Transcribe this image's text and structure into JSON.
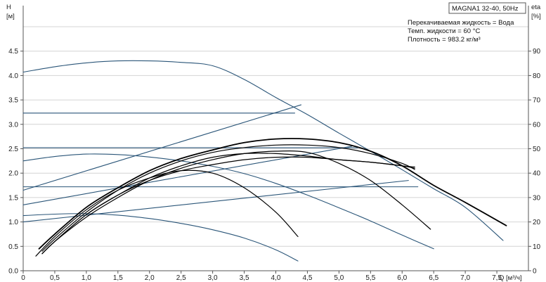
{
  "chart_data": {
    "type": "line",
    "title": "MAGNA1 32-40, 50Hz",
    "medium": [
      "Перекачиваемая жидкость = Вода",
      "Темп. жидкости = 60 °C",
      "Плотность = 983.2 кг/м³"
    ],
    "xlabel": "Q [м³/ч]",
    "ylabel_left": {
      "name": "H",
      "unit": "[м]"
    },
    "ylabel_right": {
      "name": "eta",
      "unit": "[%]"
    },
    "xlim": [
      0,
      8.0
    ],
    "ylim_left": [
      0,
      5.0
    ],
    "ylim_right": [
      0,
      100
    ],
    "x_ticks": [
      "0",
      "0,5",
      "1,0",
      "1,5",
      "2,0",
      "2,5",
      "3,0",
      "3,5",
      "4,0",
      "4,5",
      "5,0",
      "5,5",
      "6,0",
      "6,5",
      "7,0",
      "7,5"
    ],
    "y_left_ticks": [
      "0.0",
      "0.5",
      "1.0",
      "1.5",
      "2.0",
      "2.5",
      "3.0",
      "3.5",
      "4.0",
      "4.5"
    ],
    "y_right_ticks": [
      "0",
      "10",
      "20",
      "30",
      "40",
      "50",
      "60",
      "70",
      "80",
      "90"
    ],
    "grid": "horizontal",
    "series": [
      {
        "kind": "head",
        "color": "#2a5578",
        "x": [
          0,
          0.5,
          1.0,
          1.5,
          2.0,
          2.5,
          3.0,
          3.5,
          4.0,
          4.5,
          5.0,
          5.5,
          6.0,
          6.5,
          7.0,
          7.6
        ],
        "y": [
          4.07,
          4.18,
          4.26,
          4.3,
          4.3,
          4.27,
          4.2,
          3.92,
          3.55,
          3.2,
          2.82,
          2.45,
          2.07,
          1.68,
          1.3,
          0.62
        ]
      },
      {
        "kind": "head",
        "color": "#2a5578",
        "x": [
          0,
          0.5,
          1.0,
          1.5,
          2.0,
          2.5,
          3.0,
          3.5,
          4.0,
          4.5,
          5.0,
          5.5,
          6.0,
          6.5
        ],
        "y": [
          2.25,
          2.34,
          2.39,
          2.38,
          2.33,
          2.25,
          2.14,
          1.99,
          1.79,
          1.55,
          1.29,
          1.02,
          0.73,
          0.45
        ]
      },
      {
        "kind": "head",
        "color": "#2a5578",
        "x": [
          0,
          0.5,
          1.0,
          1.5,
          2.0,
          2.5,
          3.0,
          3.5,
          4.0,
          4.35
        ],
        "y": [
          1.13,
          1.16,
          1.17,
          1.14,
          1.07,
          0.97,
          0.84,
          0.67,
          0.43,
          0.2
        ]
      },
      {
        "kind": "head",
        "color": "#2a5578",
        "x": [
          0,
          4.4
        ],
        "y": [
          1.65,
          3.4
        ]
      },
      {
        "kind": "head",
        "color": "#2a5578",
        "x": [
          0,
          5.2
        ],
        "y": [
          1.35,
          2.55
        ]
      },
      {
        "kind": "head",
        "color": "#2a5578",
        "x": [
          0,
          6.1
        ],
        "y": [
          1.0,
          1.85
        ]
      },
      {
        "kind": "head",
        "color": "#2a5578",
        "x": [
          0,
          4.3
        ],
        "y": [
          3.23,
          3.23
        ]
      },
      {
        "kind": "head",
        "color": "#2a5578",
        "x": [
          0,
          5.3
        ],
        "y": [
          2.52,
          2.52
        ]
      },
      {
        "kind": "head",
        "color": "#2a5578",
        "x": [
          0,
          6.25
        ],
        "y": [
          1.72,
          1.72
        ]
      },
      {
        "kind": "eta",
        "color": "#000000",
        "x": [
          0.25,
          0.5,
          1.0,
          1.5,
          2.0,
          2.5,
          3.0,
          3.5,
          4.0,
          4.5,
          5.0,
          5.5,
          6.0,
          6.5,
          7.0,
          7.65
        ],
        "y": [
          9,
          15,
          26,
          34,
          41,
          46,
          49.5,
          52.5,
          54,
          54,
          52.5,
          49,
          43,
          35,
          28,
          18.5
        ]
      },
      {
        "kind": "eta",
        "color": "#000000",
        "x": [
          0.3,
          0.5,
          1.0,
          1.5,
          2.0,
          2.5,
          3.0,
          3.5,
          4.0,
          4.5,
          5.0,
          5.5,
          6.0,
          6.2
        ],
        "y": [
          8,
          13,
          24,
          33,
          40,
          45,
          48.5,
          50.5,
          51.5,
          51.5,
          50.5,
          48,
          44,
          41.5
        ]
      },
      {
        "kind": "eta",
        "color": "#000000",
        "x": [
          0.3,
          0.5,
          1.0,
          1.5,
          2.0,
          2.5,
          3.0,
          3.5,
          4.0,
          4.5,
          5.0,
          5.5,
          6.0,
          6.45
        ],
        "y": [
          7,
          12,
          22,
          30,
          37,
          42,
          45.5,
          48,
          49,
          48.5,
          44,
          37,
          27,
          17
        ]
      },
      {
        "kind": "eta",
        "color": "#000000",
        "x": [
          0.2,
          0.5,
          1.0,
          1.5,
          2.0,
          2.5,
          3.0,
          3.5,
          4.0,
          4.35
        ],
        "y": [
          6,
          14,
          25,
          33,
          38,
          41,
          40,
          34,
          24,
          14
        ]
      },
      {
        "kind": "eta",
        "color": "#000000",
        "x": [
          0.3,
          0.5,
          1.0,
          1.5,
          2.0,
          2.5,
          3.0,
          3.5,
          4.0,
          4.5,
          5.0,
          5.5,
          6.0,
          6.2
        ],
        "y": [
          7,
          12,
          23,
          31,
          38,
          43,
          46.5,
          48,
          48,
          47,
          45.5,
          44.5,
          43,
          42.5
        ]
      },
      {
        "kind": "eta",
        "color": "#000000",
        "x": [
          0.3,
          0.5,
          1.0,
          1.5,
          2.0,
          2.5,
          3.0,
          3.5,
          4.0,
          4.5,
          5.0,
          5.5,
          6.0,
          6.2
        ],
        "y": [
          7,
          12,
          23,
          31,
          37,
          41,
          43.5,
          45.5,
          46.5,
          46.5,
          45.5,
          44.5,
          43,
          42
        ]
      }
    ]
  }
}
